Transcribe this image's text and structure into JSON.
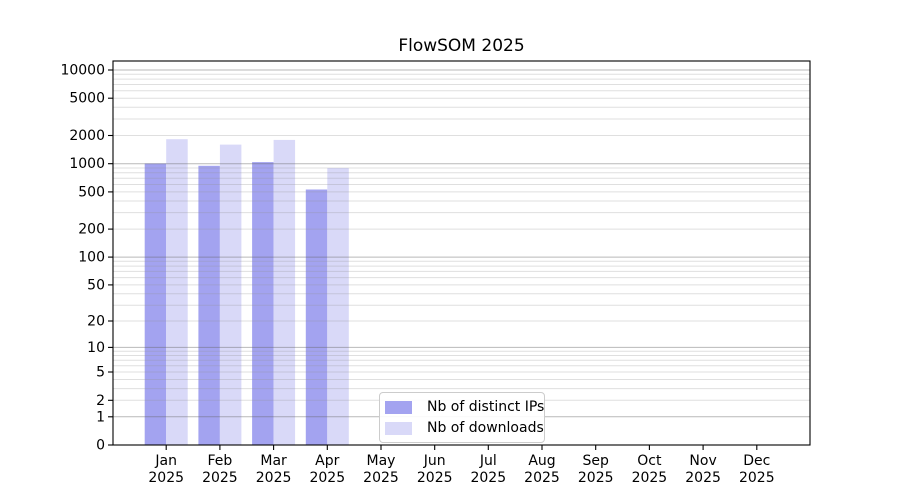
{
  "chart_data": {
    "type": "bar",
    "title": "FlowSOM 2025",
    "categories": [
      "Jan 2025",
      "Feb 2025",
      "Mar 2025",
      "Apr 2025",
      "May 2025",
      "Jun 2025",
      "Jul 2025",
      "Aug 2025",
      "Sep 2025",
      "Oct 2025",
      "Nov 2025",
      "Dec 2025"
    ],
    "series": [
      {
        "name": "Nb of distinct IPs",
        "color": "#a3a3f0",
        "values": [
          1005,
          950,
          1040,
          530,
          0,
          0,
          0,
          0,
          0,
          0,
          0,
          0
        ]
      },
      {
        "name": "Nb of downloads",
        "color": "#d9d9f8",
        "values": [
          1825,
          1600,
          1795,
          900,
          0,
          0,
          0,
          0,
          0,
          0,
          0,
          0
        ]
      }
    ],
    "yscale": "log1p",
    "ylim": [
      0,
      12000
    ],
    "y_ticks": [
      0,
      1,
      2,
      5,
      10,
      20,
      50,
      100,
      200,
      500,
      1000,
      2000,
      5000,
      10000
    ],
    "xlabel": "",
    "ylabel": "",
    "grid": {
      "visible": true,
      "which": "both",
      "major_color": "rgba(100,100,100,0.45)",
      "minor_color": "rgba(150,150,150,0.30)"
    },
    "legend": {
      "position": "lower center",
      "entries": [
        "Nb of distinct IPs",
        "Nb of downloads"
      ]
    },
    "axis_color": "#000000",
    "text_color": "#000000"
  }
}
